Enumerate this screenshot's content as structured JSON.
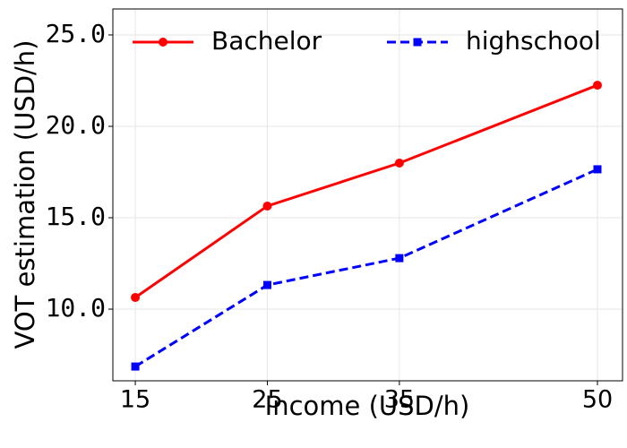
{
  "chart_data": {
    "type": "line",
    "x_label": "Income (USD/h)",
    "y_label": "VOT estimation (USD/h)",
    "x": [
      15,
      25,
      35,
      50
    ],
    "series": [
      {
        "name": "Bachelor",
        "color": "#ff0000",
        "marker": "circle",
        "dashed": false,
        "values": [
          10.64,
          15.64,
          17.99,
          22.25
        ]
      },
      {
        "name": "highschool",
        "color": "#0000ff",
        "marker": "square",
        "dashed": true,
        "values": [
          6.86,
          11.32,
          12.79,
          17.65
        ]
      }
    ],
    "xlim": [
      13.3,
      51.9
    ],
    "xticks": [
      15,
      25,
      35,
      50
    ],
    "ylim": [
      6.08,
      26.42
    ],
    "yticks": [
      {
        "value": 10,
        "label": "10.0"
      },
      {
        "value": 15,
        "label": "15.0"
      },
      {
        "value": 20,
        "label": "20.0"
      },
      {
        "value": 25,
        "label": "25.0"
      }
    ],
    "grid": true,
    "legend": "upper center"
  }
}
